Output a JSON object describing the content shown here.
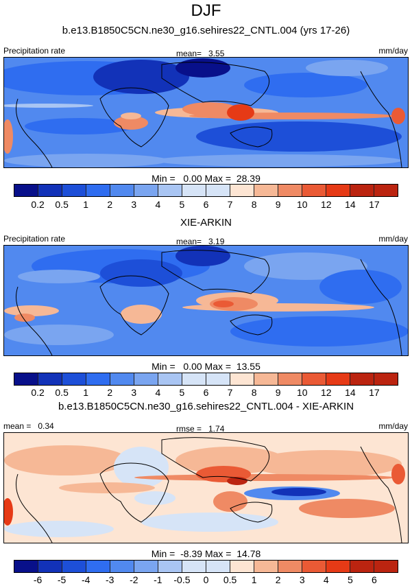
{
  "season": "DJF",
  "colors": {
    "precip": [
      "#08108a",
      "#1232b8",
      "#1d4fd8",
      "#2f6df0",
      "#5189ef",
      "#7aa5f0",
      "#a9c5f3",
      "#d6e4f7",
      "#fde5d3",
      "#f6b896",
      "#ef8a64",
      "#ea5a35",
      "#e63a16",
      "#bb2410",
      "#7e0c0a"
    ],
    "diff": [
      "#08108a",
      "#1232b8",
      "#1d4fd8",
      "#2f6df0",
      "#5189ef",
      "#7aa5f0",
      "#a9c5f3",
      "#d6e4f7",
      "#fde5d3",
      "#f6b896",
      "#ef8a64",
      "#ea5a35",
      "#e63a16",
      "#bb2410",
      "#7e0c0a"
    ]
  },
  "panels": [
    {
      "title": "b.e13.B1850C5CN.ne30_g16.sehires22_CNTL.004 (yrs 17-26)",
      "left_label": "Precipitation rate",
      "center_label": "mean=   3.55",
      "units": "mm/day",
      "minmax": "Min =   0.00 Max =  28.39",
      "ticks": [
        "0.2",
        "0.5",
        "1",
        "2",
        "3",
        "4",
        "5",
        "6",
        "7",
        "8",
        "9",
        "10",
        "12",
        "14",
        "17"
      ]
    },
    {
      "title": "XIE-ARKIN",
      "left_label": "Precipitation rate",
      "center_label": "mean=   3.19",
      "units": "mm/day",
      "minmax": "Min =   0.00 Max =  13.55",
      "ticks": [
        "0.2",
        "0.5",
        "1",
        "2",
        "3",
        "4",
        "5",
        "6",
        "7",
        "8",
        "9",
        "10",
        "12",
        "14",
        "17"
      ]
    },
    {
      "title": "b.e13.B1850C5CN.ne30_g16.sehires22_CNTL.004 - XIE-ARKIN",
      "left_label": "mean =   0.34",
      "center_label": "rmse =   1.74",
      "units": "mm/day",
      "minmax": "Min =  -8.39 Max =  14.78",
      "ticks": [
        "-6",
        "-5",
        "-4",
        "-3",
        "-2",
        "-1",
        "-0.5",
        "0",
        "0.5",
        "1",
        "2",
        "3",
        "4",
        "5",
        "6"
      ]
    }
  ]
}
